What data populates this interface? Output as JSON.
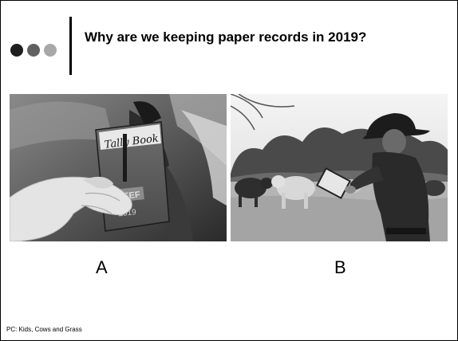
{
  "slide": {
    "title": "Why are we keeping paper records in 2019?",
    "images": [
      {
        "label": "A",
        "book_text": {
          "top": "Tally Book",
          "middle": "BEEF",
          "year": "2019"
        }
      },
      {
        "label": "B"
      }
    ],
    "credit": "PC: Kids, Cows and Grass"
  },
  "icons": [
    "dot-dark",
    "dot-mid",
    "dot-light"
  ]
}
